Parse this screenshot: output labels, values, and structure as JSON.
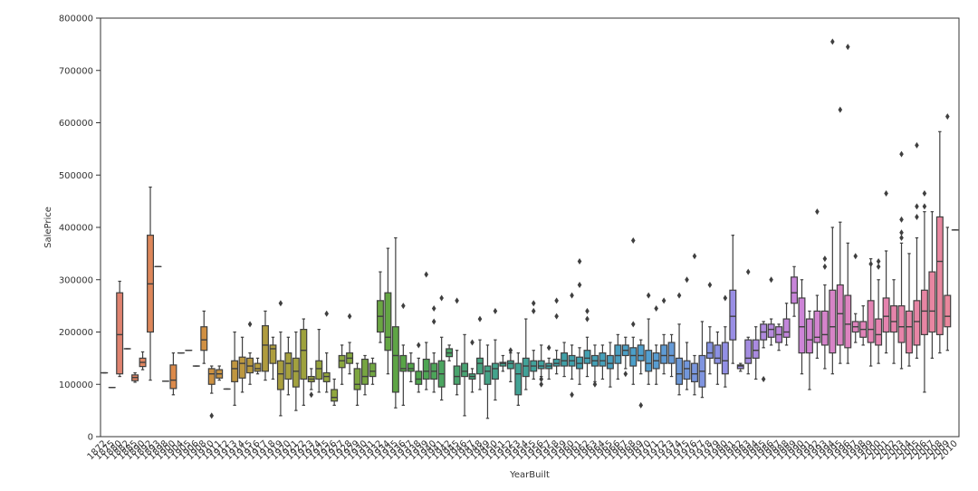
{
  "chart_data": {
    "type": "box",
    "xlabel": "YearBuilt",
    "ylabel": "SalePrice",
    "categories": [
      "1872",
      "1875",
      "1880",
      "1882",
      "1885",
      "1890",
      "1892",
      "1893",
      "1898",
      "1900",
      "1904",
      "1905",
      "1906",
      "1908",
      "1910",
      "1911",
      "1912",
      "1913",
      "1914",
      "1915",
      "1916",
      "1917",
      "1918",
      "1919",
      "1920",
      "1921",
      "1922",
      "1923",
      "1924",
      "1925",
      "1926",
      "1927",
      "1928",
      "1929",
      "1930",
      "1931",
      "1932",
      "1934",
      "1935",
      "1936",
      "1937",
      "1938",
      "1939",
      "1940",
      "1941",
      "1942",
      "1945",
      "1946",
      "1947",
      "1948",
      "1949",
      "1950",
      "1951",
      "1952",
      "1953",
      "1954",
      "1955",
      "1956",
      "1957",
      "1958",
      "1959",
      "1960",
      "1961",
      "1962",
      "1963",
      "1964",
      "1965",
      "1966",
      "1967",
      "1968",
      "1969",
      "1970",
      "1971",
      "1972",
      "1973",
      "1974",
      "1975",
      "1976",
      "1977",
      "1978",
      "1979",
      "1980",
      "1981",
      "1982",
      "1983",
      "1984",
      "1985",
      "1986",
      "1987",
      "1988",
      "1989",
      "1990",
      "1991",
      "1992",
      "1993",
      "1994",
      "1995",
      "1996",
      "1997",
      "1998",
      "1999",
      "2000",
      "2001",
      "2002",
      "2003",
      "2004",
      "2005",
      "2006",
      "2007",
      "2008",
      "2009",
      "2010"
    ],
    "whislo": [
      122000,
      94000,
      115000,
      168000,
      104000,
      128000,
      108000,
      325000,
      106000,
      80000,
      160000,
      165000,
      135000,
      140000,
      83000,
      108000,
      91000,
      60000,
      85000,
      100000,
      120000,
      108000,
      110000,
      40000,
      80000,
      50000,
      60000,
      90000,
      85000,
      85000,
      60000,
      100000,
      120000,
      60000,
      80000,
      100000,
      180000,
      120000,
      55000,
      60000,
      105000,
      85000,
      90000,
      85000,
      70000,
      145000,
      80000,
      40000,
      85000,
      90000,
      35000,
      70000,
      125000,
      105000,
      60000,
      90000,
      110000,
      115000,
      110000,
      120000,
      115000,
      110000,
      100000,
      115000,
      105000,
      110000,
      95000,
      110000,
      130000,
      100000,
      120000,
      100000,
      100000,
      120000,
      115000,
      80000,
      90000,
      80000,
      75000,
      120000,
      100000,
      95000,
      140000,
      125000,
      120000,
      110000,
      170000,
      175000,
      165000,
      175000,
      230000,
      120000,
      90000,
      150000,
      130000,
      120000,
      140000,
      140000,
      180000,
      175000,
      135000,
      140000,
      160000,
      140000,
      130000,
      135000,
      150000,
      85000,
      150000,
      160000,
      165000,
      395000
    ],
    "q1": [
      122000,
      94000,
      120000,
      168000,
      107000,
      134000,
      200000,
      325000,
      106000,
      92000,
      160000,
      165000,
      135000,
      165000,
      100000,
      112000,
      91000,
      105000,
      112000,
      122000,
      125000,
      125000,
      140000,
      90000,
      110000,
      95000,
      110000,
      105000,
      110000,
      105000,
      68000,
      132000,
      140000,
      90000,
      100000,
      115000,
      200000,
      165000,
      85000,
      125000,
      125000,
      100000,
      110000,
      110000,
      95000,
      153000,
      100000,
      115000,
      110000,
      120000,
      100000,
      110000,
      135000,
      130000,
      80000,
      115000,
      125000,
      130000,
      130000,
      135000,
      135000,
      135000,
      130000,
      140000,
      135000,
      135000,
      130000,
      140000,
      155000,
      135000,
      145000,
      125000,
      130000,
      140000,
      140000,
      100000,
      110000,
      105000,
      95000,
      150000,
      140000,
      120000,
      185000,
      130000,
      140000,
      150000,
      185000,
      190000,
      180000,
      190000,
      255000,
      160000,
      160000,
      180000,
      175000,
      160000,
      175000,
      170000,
      200000,
      190000,
      180000,
      175000,
      200000,
      200000,
      180000,
      160000,
      175000,
      195000,
      200000,
      195000,
      210000,
      395000
    ],
    "median": [
      122000,
      94000,
      195000,
      168000,
      113000,
      142000,
      292000,
      325000,
      106000,
      108000,
      160000,
      165000,
      135000,
      185000,
      120000,
      120000,
      91000,
      130000,
      140000,
      135000,
      130000,
      175000,
      168000,
      120000,
      140000,
      125000,
      165000,
      110000,
      130000,
      115000,
      75000,
      145000,
      150000,
      100000,
      115000,
      125000,
      230000,
      190000,
      155000,
      130000,
      130000,
      110000,
      125000,
      125000,
      120000,
      160000,
      115000,
      125000,
      115000,
      140000,
      125000,
      130000,
      140000,
      140000,
      120000,
      135000,
      135000,
      135000,
      135000,
      140000,
      145000,
      145000,
      140000,
      150000,
      145000,
      145000,
      140000,
      155000,
      165000,
      155000,
      155000,
      140000,
      145000,
      155000,
      155000,
      120000,
      130000,
      120000,
      125000,
      160000,
      150000,
      145000,
      230000,
      135000,
      150000,
      165000,
      200000,
      205000,
      195000,
      200000,
      275000,
      210000,
      185000,
      190000,
      195000,
      210000,
      235000,
      215000,
      210000,
      205000,
      205000,
      195000,
      230000,
      220000,
      210000,
      210000,
      220000,
      240000,
      240000,
      335000,
      230000,
      395000
    ],
    "q3": [
      122000,
      94000,
      275000,
      168000,
      118000,
      150000,
      385000,
      325000,
      106000,
      137000,
      160000,
      165000,
      135000,
      210000,
      130000,
      128000,
      91000,
      145000,
      152000,
      150000,
      140000,
      212000,
      175000,
      145000,
      160000,
      150000,
      205000,
      115000,
      145000,
      122000,
      90000,
      155000,
      160000,
      130000,
      148000,
      140000,
      260000,
      275000,
      210000,
      155000,
      140000,
      125000,
      148000,
      140000,
      145000,
      168000,
      135000,
      140000,
      120000,
      150000,
      135000,
      140000,
      142000,
      145000,
      140000,
      150000,
      145000,
      145000,
      140000,
      148000,
      160000,
      155000,
      152000,
      165000,
      155000,
      160000,
      155000,
      175000,
      175000,
      170000,
      175000,
      165000,
      160000,
      175000,
      180000,
      150000,
      145000,
      140000,
      155000,
      180000,
      175000,
      180000,
      280000,
      137000,
      185000,
      185000,
      215000,
      215000,
      210000,
      225000,
      305000,
      265000,
      225000,
      240000,
      240000,
      280000,
      290000,
      270000,
      220000,
      220000,
      260000,
      225000,
      265000,
      250000,
      250000,
      240000,
      260000,
      280000,
      315000,
      420000,
      270000,
      395000
    ],
    "whishi": [
      122000,
      94000,
      297000,
      168000,
      122000,
      162000,
      477000,
      325000,
      106000,
      160000,
      160000,
      165000,
      135000,
      240000,
      135000,
      135000,
      91000,
      200000,
      190000,
      160000,
      150000,
      240000,
      190000,
      200000,
      190000,
      200000,
      225000,
      130000,
      205000,
      160000,
      110000,
      175000,
      180000,
      140000,
      155000,
      150000,
      315000,
      360000,
      380000,
      175000,
      160000,
      150000,
      180000,
      160000,
      190000,
      175000,
      165000,
      195000,
      130000,
      185000,
      175000,
      185000,
      155000,
      160000,
      160000,
      225000,
      165000,
      175000,
      150000,
      165000,
      180000,
      175000,
      170000,
      190000,
      175000,
      175000,
      180000,
      195000,
      190000,
      190000,
      185000,
      225000,
      175000,
      195000,
      195000,
      215000,
      180000,
      155000,
      220000,
      210000,
      200000,
      210000,
      385000,
      140000,
      190000,
      210000,
      220000,
      225000,
      215000,
      255000,
      325000,
      300000,
      240000,
      270000,
      290000,
      400000,
      410000,
      370000,
      235000,
      250000,
      340000,
      300000,
      355000,
      300000,
      370000,
      350000,
      380000,
      430000,
      430000,
      583000,
      400000,
      395000
    ],
    "outliers": [
      [],
      [],
      [],
      [],
      [],
      [],
      [],
      [],
      [],
      [],
      [],
      [],
      [],
      [],
      [
        40000
      ],
      [],
      [],
      [],
      [],
      [
        215000
      ],
      [],
      [],
      [],
      [
        255000
      ],
      [],
      [],
      [],
      [
        80000
      ],
      [],
      [
        235000
      ],
      [],
      [],
      [
        230000
      ],
      [],
      [],
      [],
      [],
      [],
      [],
      [
        250000
      ],
      [],
      [
        175000
      ],
      [
        310000
      ],
      [
        220000,
        245000
      ],
      [
        265000
      ],
      [],
      [
        260000
      ],
      [],
      [
        180000
      ],
      [
        225000
      ],
      [],
      [
        240000
      ],
      [],
      [
        165000
      ],
      [],
      [],
      [
        240000,
        255000
      ],
      [
        100000,
        110000
      ],
      [
        170000
      ],
      [
        230000,
        260000
      ],
      [],
      [
        270000,
        80000
      ],
      [
        290000,
        335000
      ],
      [
        225000,
        240000
      ],
      [
        100000
      ],
      [],
      [],
      [],
      [
        120000
      ],
      [
        375000,
        215000
      ],
      [
        60000
      ],
      [
        270000
      ],
      [
        245000
      ],
      [
        260000
      ],
      [],
      [
        270000
      ],
      [
        300000
      ],
      [
        345000
      ],
      [],
      [
        290000
      ],
      [],
      [
        265000
      ],
      [],
      [],
      [
        315000
      ],
      [],
      [
        110000
      ],
      [
        300000
      ],
      [],
      [],
      [],
      [],
      [],
      [
        430000
      ],
      [
        325000,
        340000
      ],
      [
        755000
      ],
      [
        625000
      ],
      [
        745000
      ],
      [
        345000
      ],
      [],
      [
        330000
      ],
      [
        335000,
        325000
      ],
      [
        465000
      ],
      [],
      [
        540000,
        415000,
        390000,
        380000
      ],
      [],
      [
        420000,
        440000,
        557000
      ],
      [
        465000,
        440000
      ],
      [],
      [],
      [
        612000
      ],
      []
    ],
    "palette": [
      "#e0807a",
      "#dc8b45",
      "#b39b3e",
      "#8fa73d",
      "#4fa548",
      "#44a48a",
      "#3fa0a9",
      "#4f9fcf",
      "#9190e6",
      "#cd84d8",
      "#e583b0",
      "#e8879a"
    ],
    "ylim": [
      0,
      800000
    ],
    "yticks": [
      0,
      100000,
      200000,
      300000,
      400000,
      500000,
      600000,
      700000,
      800000
    ],
    "grid": false
  }
}
